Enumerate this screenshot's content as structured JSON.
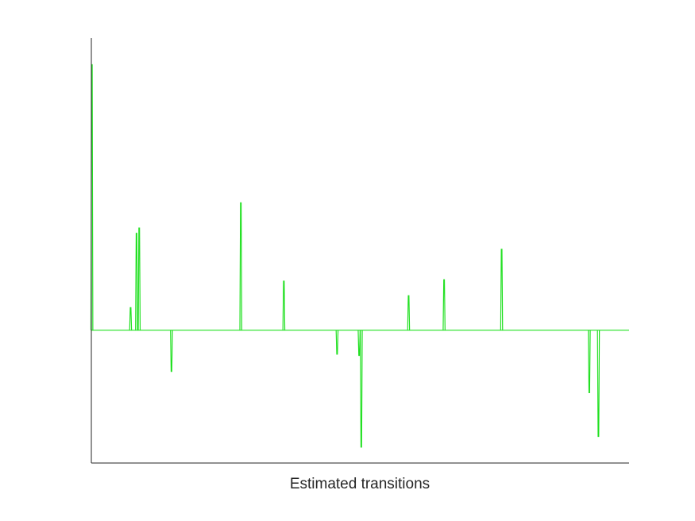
{
  "chart_data": {
    "type": "line",
    "title": "",
    "xlabel": "Estimated transitions",
    "ylabel": "",
    "xlim": [
      0,
      1000
    ],
    "ylim": [
      -1,
      2.2
    ],
    "grid": false,
    "legend": "none",
    "baseline": 0,
    "line_color": "#22e022",
    "axis_color": "#262626",
    "series": [
      {
        "spikes": [
          {
            "x": 1,
            "y": 2.0
          },
          {
            "x": 73,
            "y": 0.17
          },
          {
            "x": 84,
            "y": 0.73
          },
          {
            "x": 89,
            "y": 0.77
          },
          {
            "x": 149,
            "y": -0.31
          },
          {
            "x": 278,
            "y": 0.96
          },
          {
            "x": 358,
            "y": 0.37
          },
          {
            "x": 457,
            "y": -0.18
          },
          {
            "x": 498,
            "y": -0.19
          },
          {
            "x": 502,
            "y": -0.88
          },
          {
            "x": 590,
            "y": 0.26
          },
          {
            "x": 656,
            "y": 0.38
          },
          {
            "x": 763,
            "y": 0.61
          },
          {
            "x": 926,
            "y": -0.47
          },
          {
            "x": 943,
            "y": -0.8
          }
        ]
      }
    ]
  }
}
